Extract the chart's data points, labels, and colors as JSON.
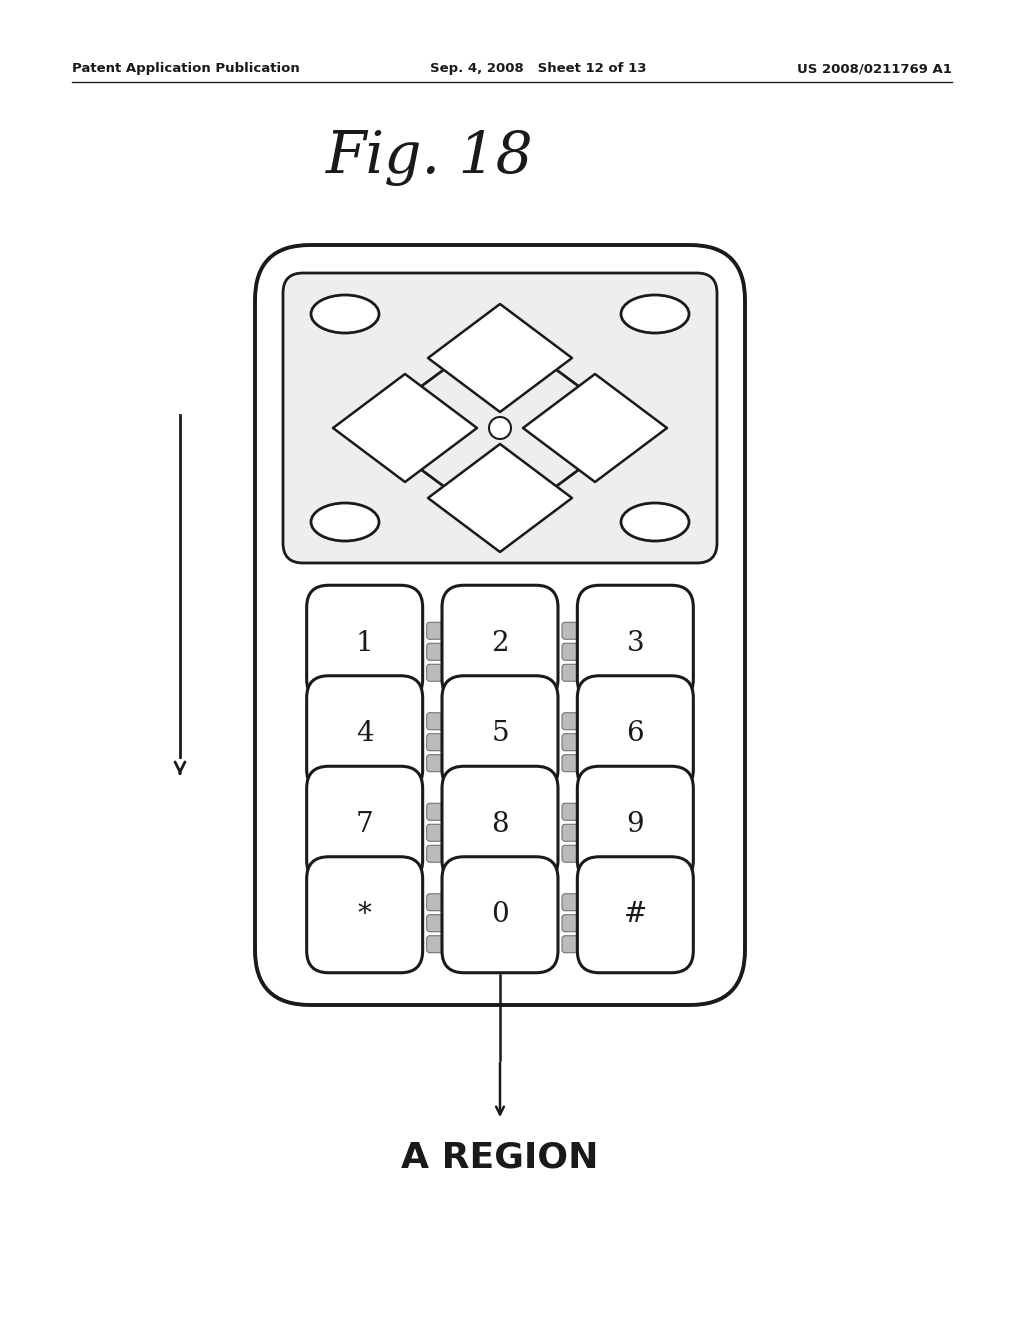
{
  "title": "Fig. 18",
  "header_left": "Patent Application Publication",
  "header_mid": "Sep. 4, 2008   Sheet 12 of 13",
  "header_right": "US 2008/0211769 A1",
  "label": "A REGION",
  "bg_color": "#ffffff",
  "line_color": "#1a1a1a",
  "shade_color": "#bbbbbb",
  "key_labels": [
    [
      "1",
      "2",
      "3"
    ],
    [
      "4",
      "5",
      "6"
    ],
    [
      "7",
      "8",
      "9"
    ],
    [
      "*",
      "0",
      "#"
    ]
  ]
}
